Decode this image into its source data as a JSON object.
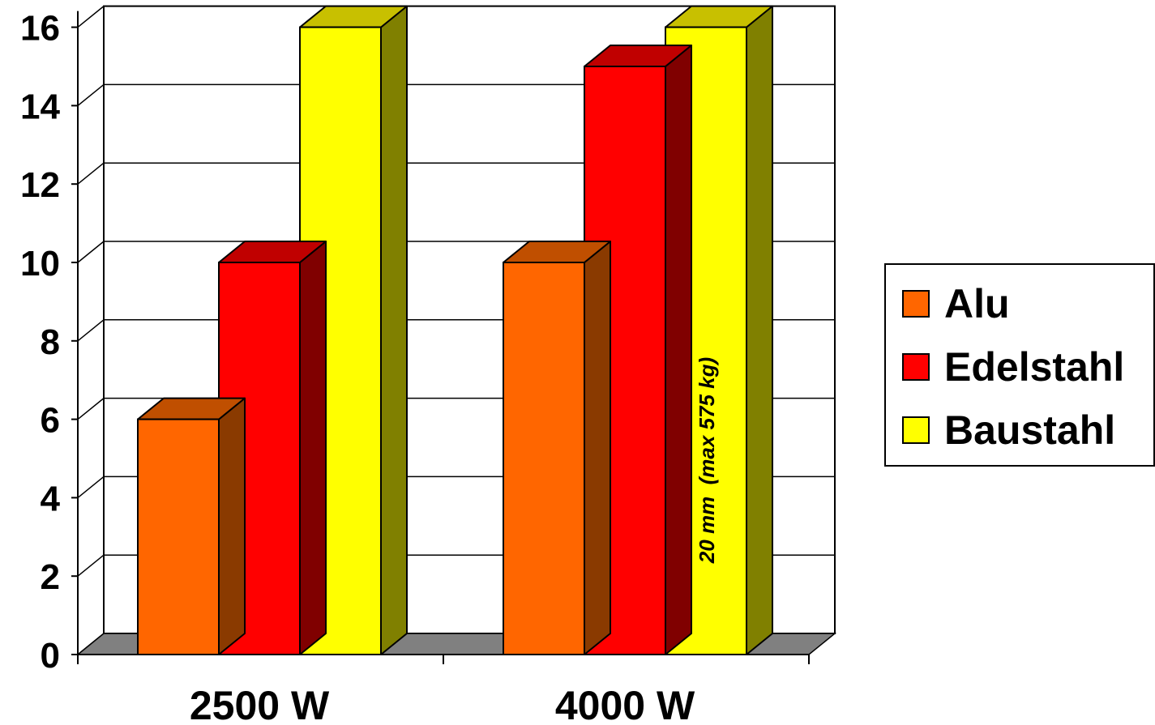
{
  "chart_data": {
    "type": "bar",
    "categories": [
      "2500 W",
      "4000 W"
    ],
    "series": [
      {
        "name": "Alu",
        "values": [
          6,
          10
        ],
        "color": "#FF6600",
        "top_color": "#C04F00",
        "side_color": "#8A3A00"
      },
      {
        "name": "Edelstahl",
        "values": [
          10,
          15
        ],
        "color": "#FF0000",
        "top_color": "#C00000",
        "side_color": "#800000"
      },
      {
        "name": "Baustahl",
        "values": [
          16,
          16
        ],
        "color": "#FFFF00",
        "top_color": "#C8C000",
        "side_color": "#808000"
      }
    ],
    "ylim": [
      0,
      16
    ],
    "yticks": [
      "0",
      "2",
      "4",
      "6",
      "8",
      "10",
      "12",
      "14",
      "16"
    ],
    "annotation": "20 mm  (max 575 kg)",
    "grid": true,
    "legend_position": "right",
    "floor_color": "#808080"
  }
}
